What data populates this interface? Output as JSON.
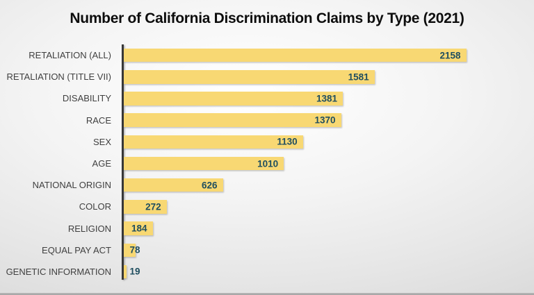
{
  "chart_data": {
    "type": "bar",
    "orientation": "horizontal",
    "title": "Number of California Discrimination Claims by Type (2021)",
    "categories": [
      "RETALIATION (ALL)",
      "RETALIATION (TITLE VII)",
      "DISABILITY",
      "RACE",
      "SEX",
      "AGE",
      "NATIONAL ORIGIN",
      "COLOR",
      "RELIGION",
      "EQUAL PAY ACT",
      "GENETIC INFORMATION"
    ],
    "values": [
      2158,
      1581,
      1381,
      1370,
      1130,
      1010,
      626,
      272,
      184,
      78,
      19
    ],
    "xlabel": "",
    "ylabel": "",
    "xlim": [
      0,
      2200
    ],
    "grid": false,
    "legend": false,
    "value_label_position": "inside-end",
    "colors": {
      "bar_fill": "#F8D873",
      "value_label": "#1F4E5F",
      "category_label": "#3F3F3F",
      "axis_line": "#383838",
      "title": "#0D0D0D",
      "background_edge": "#CBCBCB",
      "background_center": "#FFFFFF"
    }
  }
}
